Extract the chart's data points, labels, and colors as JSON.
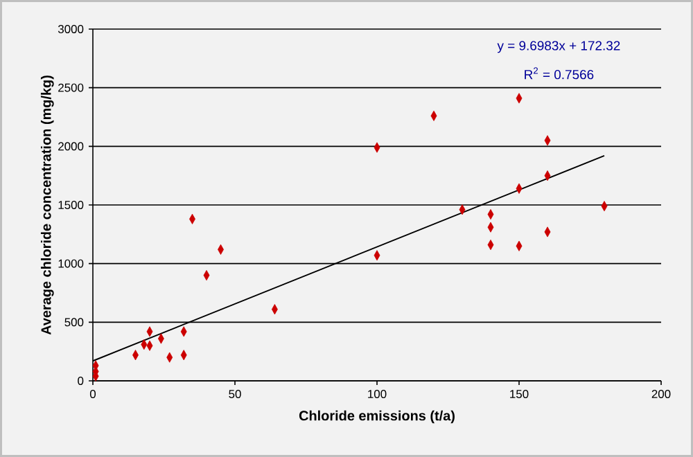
{
  "chart_data": {
    "type": "scatter",
    "xlabel": "Chloride emissions (t/a)",
    "ylabel": "Average chloride concentration (mg/kg)",
    "xlim": [
      0,
      200
    ],
    "ylim": [
      0,
      3000
    ],
    "xticks": [
      0,
      50,
      100,
      150,
      200
    ],
    "yticks": [
      0,
      500,
      1000,
      1500,
      2000,
      2500,
      3000
    ],
    "grid": "y",
    "annotations": [
      "y = 9.6983x + 172.32",
      "R$^{2}$ = 0.7566"
    ],
    "series": [
      {
        "color": "#cc0000",
        "marker": "diamond",
        "x": [
          1,
          1,
          1,
          15,
          18,
          20,
          20,
          24,
          27,
          32,
          32,
          35,
          40,
          45,
          64,
          100,
          100,
          120,
          130,
          140,
          140,
          140,
          150,
          150,
          150,
          160,
          160,
          160,
          180
        ],
        "values": [
          130,
          80,
          40,
          220,
          310,
          420,
          300,
          360,
          200,
          420,
          220,
          1380,
          900,
          1120,
          610,
          1990,
          1070,
          2260,
          1460,
          1420,
          1310,
          1160,
          2410,
          1640,
          1150,
          2050,
          1750,
          1270,
          1490
        ]
      },
      {
        "type": "line",
        "color": "#000000",
        "marker": "none",
        "x": [
          0,
          180
        ],
        "values": [
          170,
          1920
        ]
      }
    ]
  }
}
